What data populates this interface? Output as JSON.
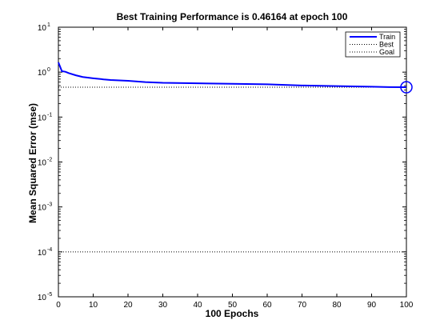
{
  "chart_data": {
    "type": "line",
    "title": "Best Training Performance is 0.46164 at epoch 100",
    "xlabel": "100 Epochs",
    "ylabel": "Mean Squared Error  (mse)",
    "xlim": [
      0,
      100
    ],
    "ylim": [
      1e-05,
      10
    ],
    "yscale": "log",
    "x_ticks": [
      0,
      10,
      20,
      30,
      40,
      50,
      60,
      70,
      80,
      90,
      100
    ],
    "y_ticks": [
      {
        "value": 1e-05,
        "base": "10",
        "exp": "-5"
      },
      {
        "value": 0.0001,
        "base": "10",
        "exp": "-4"
      },
      {
        "value": 0.001,
        "base": "10",
        "exp": "-3"
      },
      {
        "value": 0.01,
        "base": "10",
        "exp": "-2"
      },
      {
        "value": 0.1,
        "base": "10",
        "exp": "-1"
      },
      {
        "value": 1,
        "base": "10",
        "exp": "0"
      },
      {
        "value": 10,
        "base": "10",
        "exp": "1"
      }
    ],
    "legend_position": "top-right",
    "series": [
      {
        "name": "Train",
        "color": "#0000ff",
        "style": "solid",
        "x": [
          0,
          1,
          2,
          3,
          5,
          7,
          10,
          13,
          15,
          20,
          25,
          30,
          40,
          50,
          60,
          65,
          70,
          80,
          90,
          95,
          100
        ],
        "y": [
          1.65,
          1.05,
          1.02,
          0.95,
          0.85,
          0.78,
          0.73,
          0.69,
          0.67,
          0.64,
          0.6,
          0.58,
          0.565,
          0.55,
          0.535,
          0.52,
          0.505,
          0.49,
          0.475,
          0.465,
          0.46164
        ]
      },
      {
        "name": "Best",
        "color": "#000000",
        "style": "dotted",
        "y_const": 0.46164
      },
      {
        "name": "Goal",
        "color": "#000000",
        "style": "dotted",
        "y_const": 0.0001
      }
    ],
    "best_point": {
      "x": 100,
      "y": 0.46164,
      "color": "#0000ff"
    },
    "vertical_marker": {
      "x": 100,
      "style": "dotted"
    }
  }
}
